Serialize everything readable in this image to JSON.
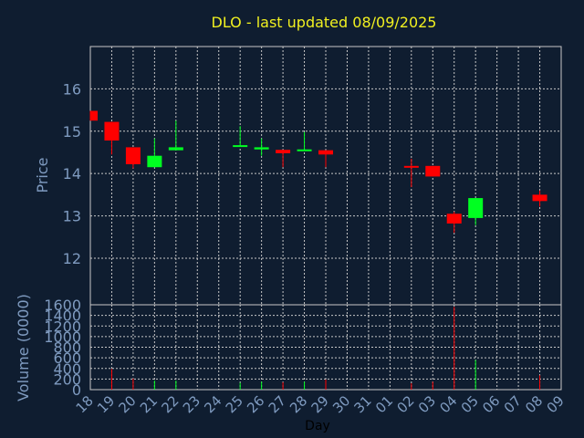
{
  "chart_data": {
    "type": "candlestick",
    "title": "DLO - last updated 08/09/2025",
    "xlabel": "Day",
    "price_panel": {
      "ylabel": "Price",
      "ylim": [
        10.9,
        17.0
      ],
      "yticks": [
        12,
        13,
        14,
        15,
        16
      ]
    },
    "volume_panel": {
      "ylabel": "Volume (0000)",
      "ylim": [
        0,
        1600
      ],
      "yticks": [
        0,
        200,
        400,
        600,
        800,
        1000,
        1200,
        1400,
        1600
      ]
    },
    "grid": true,
    "x_tick_labels": [
      "18",
      "19",
      "20",
      "21",
      "22",
      "23",
      "24",
      "25",
      "26",
      "27",
      "28",
      "29",
      "30",
      "31",
      "01",
      "02",
      "03",
      "04",
      "05",
      "06",
      "07",
      "08",
      "09"
    ],
    "candles": [
      {
        "day": "18",
        "open": 15.48,
        "high": 15.48,
        "low": 15.25,
        "close": 15.25,
        "volume": 0
      },
      {
        "day": "19",
        "open": 15.22,
        "high": 15.22,
        "low": 14.45,
        "close": 14.78,
        "volume": 390
      },
      {
        "day": "20",
        "open": 14.62,
        "high": 14.62,
        "low": 14.12,
        "close": 14.22,
        "volume": 210
      },
      {
        "day": "21",
        "open": 14.15,
        "high": 14.83,
        "low": 14.15,
        "close": 14.42,
        "volume": 170
      },
      {
        "day": "22",
        "open": 14.55,
        "high": 15.25,
        "low": 14.55,
        "close": 14.62,
        "volume": 170
      },
      {
        "day": "25",
        "open": 14.63,
        "high": 15.12,
        "low": 14.63,
        "close": 14.67,
        "volume": 130
      },
      {
        "day": "26",
        "open": 14.57,
        "high": 14.83,
        "low": 14.42,
        "close": 14.62,
        "volume": 150
      },
      {
        "day": "27",
        "open": 14.56,
        "high": 14.56,
        "low": 14.15,
        "close": 14.48,
        "volume": 140
      },
      {
        "day": "28",
        "open": 14.55,
        "high": 14.98,
        "low": 14.55,
        "close": 14.57,
        "volume": 150
      },
      {
        "day": "29",
        "open": 14.55,
        "high": 14.55,
        "low": 14.15,
        "close": 14.45,
        "volume": 190
      },
      {
        "day": "02",
        "open": 14.18,
        "high": 14.35,
        "low": 13.68,
        "close": 14.16,
        "volume": 120
      },
      {
        "day": "03",
        "open": 14.18,
        "high": 14.18,
        "low": 13.93,
        "close": 13.93,
        "volume": 150
      },
      {
        "day": "04",
        "open": 13.05,
        "high": 13.1,
        "low": 12.6,
        "close": 12.82,
        "volume": 1560
      },
      {
        "day": "05",
        "open": 12.95,
        "high": 13.42,
        "low": 12.78,
        "close": 13.42,
        "volume": 560
      },
      {
        "day": "08",
        "open": 13.5,
        "high": 13.6,
        "low": 13.22,
        "close": 13.35,
        "volume": 270
      }
    ],
    "colors": {
      "background": "#0f1d30",
      "up": "#00ff21",
      "down": "#ff0000",
      "grid": "#c8c8c8",
      "axis_text": "#7f9bc0",
      "title": "#f0f020"
    }
  }
}
